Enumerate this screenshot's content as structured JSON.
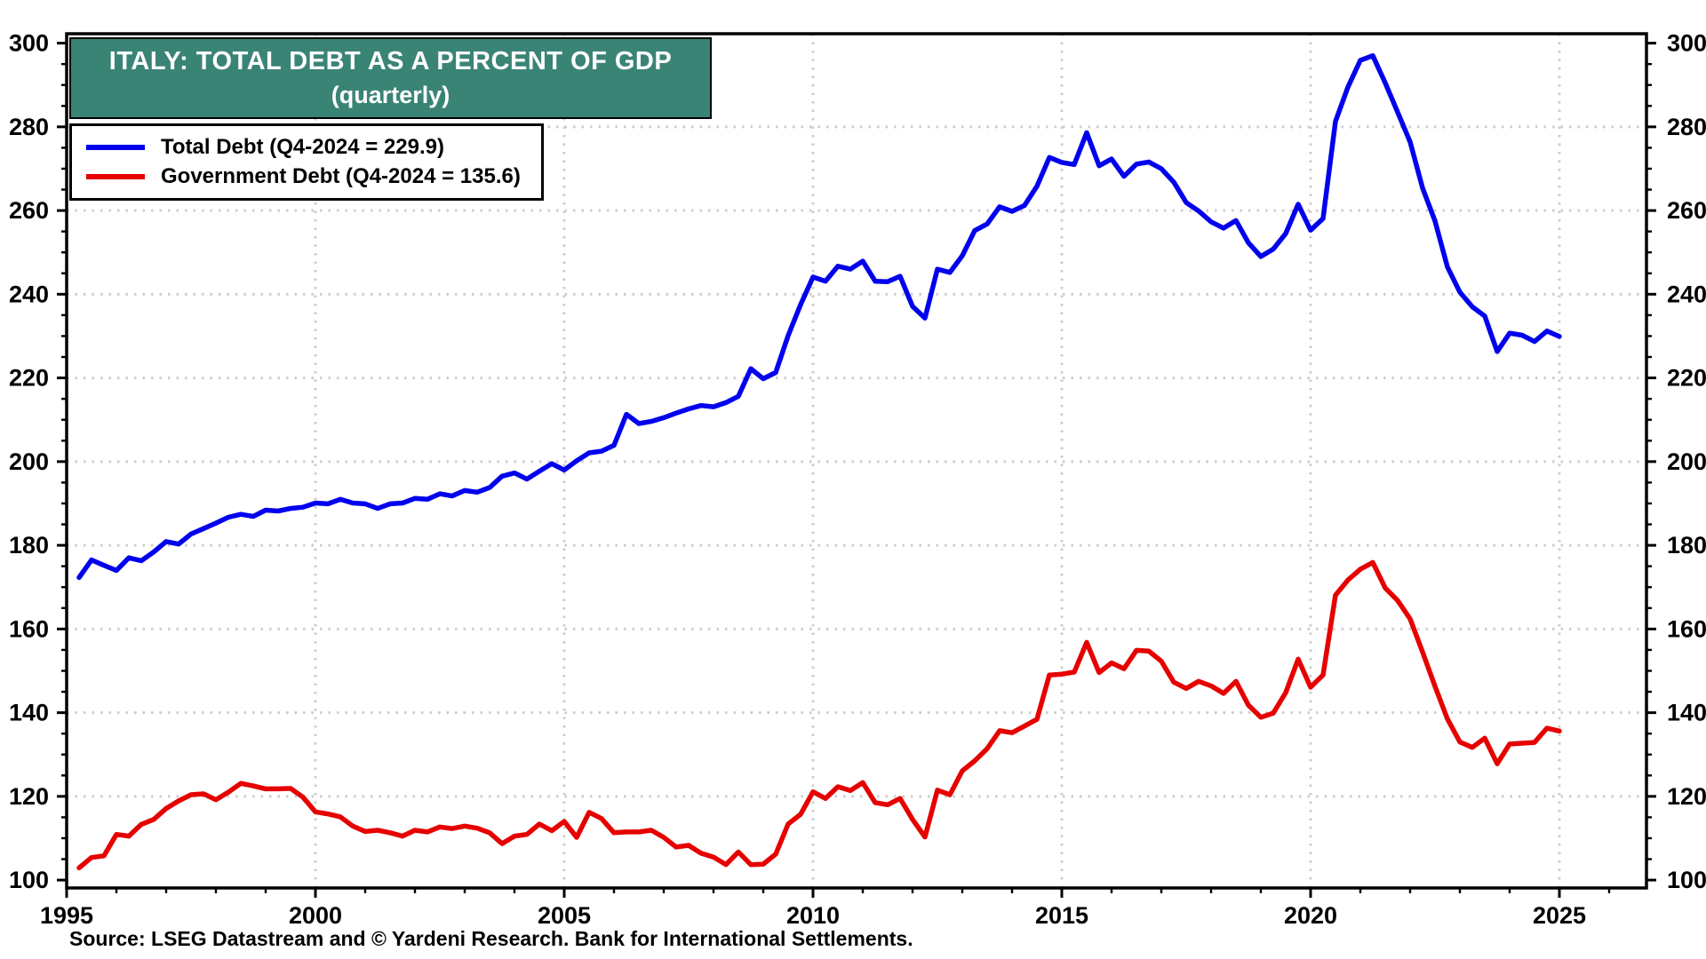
{
  "title": {
    "line1": "ITALY: TOTAL DEBT AS A PERCENT OF GDP",
    "line2": "(quarterly)"
  },
  "source": "Source: LSEG Datastream and © Yardeni Research. Bank for International Settlements.",
  "colors": {
    "title_background": "#3A8476",
    "total_debt_line": "#0000EE",
    "government_debt_line": "#E60000",
    "grid": "#cdcdcd",
    "axis": "#000000"
  },
  "chart_data": {
    "type": "line",
    "title": "ITALY: TOTAL DEBT AS A PERCENT OF GDP",
    "subtitle": "(quarterly)",
    "xlabel": "",
    "ylabel": "",
    "ylim": [
      100,
      300
    ],
    "ytick_step": 20,
    "ytick_minor_step": 5,
    "yticks": [
      100,
      120,
      140,
      160,
      180,
      200,
      220,
      240,
      260,
      280,
      300
    ],
    "xticks": [
      1995,
      2000,
      2005,
      2010,
      2015,
      2020,
      2025
    ],
    "xtick_minor_step_years": 1,
    "x_start_year": 1995,
    "points_per_year": 4,
    "grid": true,
    "legend_position": "top-left",
    "axis_labels_both_sides": true,
    "series": [
      {
        "name": "Total Debt (Q4-2024 = 229.9)",
        "color": "#0000EE",
        "last_label": "Q4-2024 = 229.9",
        "values": [
          172.3,
          176.5,
          175.2,
          174.0,
          177.0,
          176.3,
          178.4,
          180.9,
          180.3,
          182.7,
          184.0,
          185.3,
          186.7,
          187.4,
          186.9,
          188.4,
          188.2,
          188.8,
          189.1,
          190.1,
          189.9,
          191.0,
          190.1,
          189.9,
          188.8,
          189.9,
          190.1,
          191.2,
          191.0,
          192.3,
          191.8,
          193.1,
          192.7,
          193.8,
          196.5,
          197.3,
          195.8,
          197.7,
          199.5,
          198.0,
          200.2,
          202.1,
          202.5,
          203.9,
          211.3,
          209.1,
          209.6,
          210.5,
          211.6,
          212.6,
          213.4,
          213.1,
          214.1,
          215.6,
          222.2,
          219.8,
          221.3,
          230.1,
          237.5,
          244.1,
          243.1,
          246.7,
          246.0,
          247.9,
          243.1,
          243.0,
          244.3,
          237.1,
          234.3,
          246.0,
          245.2,
          249.2,
          255.2,
          256.8,
          260.9,
          259.8,
          261.2,
          265.8,
          272.7,
          271.5,
          271.0,
          278.6,
          270.7,
          272.3,
          268.2,
          271.1,
          271.6,
          270.0,
          266.8,
          261.9,
          259.9,
          257.3,
          255.8,
          257.6,
          252.3,
          249.0,
          250.8,
          254.5,
          261.5,
          255.3,
          258.1,
          281.3,
          289.5,
          295.9,
          297.0,
          290.5,
          283.5,
          276.4,
          265.4,
          257.5,
          246.5,
          240.5,
          237.0,
          234.8,
          226.3,
          230.7,
          230.2,
          228.7,
          231.2,
          229.9
        ]
      },
      {
        "name": "Government Debt (Q4-2024 = 135.6)",
        "color": "#E60000",
        "last_label": "Q4-2024 = 135.6",
        "values": [
          102.9,
          105.4,
          105.8,
          110.9,
          110.5,
          113.3,
          114.5,
          117.1,
          118.9,
          120.4,
          120.6,
          119.2,
          121.0,
          123.1,
          122.5,
          121.8,
          121.8,
          121.9,
          119.8,
          116.3,
          115.8,
          115.1,
          112.9,
          111.6,
          111.9,
          111.3,
          110.5,
          111.9,
          111.5,
          112.7,
          112.3,
          112.9,
          112.4,
          111.3,
          108.7,
          110.5,
          110.9,
          113.4,
          111.8,
          114.0,
          110.2,
          116.2,
          114.7,
          111.3,
          111.5,
          111.5,
          111.9,
          110.2,
          107.9,
          108.3,
          106.4,
          105.5,
          103.7,
          106.7,
          103.7,
          103.8,
          106.2,
          113.4,
          115.7,
          121.1,
          119.5,
          122.3,
          121.4,
          123.3,
          118.5,
          118.0,
          119.5,
          114.5,
          110.3,
          121.5,
          120.4,
          126.1,
          128.5,
          131.4,
          135.7,
          135.2,
          136.8,
          138.4,
          149.0,
          149.2,
          149.7,
          156.8,
          149.6,
          151.9,
          150.5,
          154.9,
          154.7,
          152.3,
          147.3,
          145.8,
          147.5,
          146.4,
          144.6,
          147.5,
          141.8,
          138.9,
          139.9,
          144.8,
          152.8,
          146.1,
          149.0,
          168.1,
          171.7,
          174.3,
          175.9,
          169.8,
          166.8,
          162.4,
          154.5,
          146.3,
          138.5,
          133.0,
          131.7,
          133.9,
          127.8,
          132.5,
          132.7,
          132.9,
          136.3,
          135.6
        ]
      }
    ]
  }
}
